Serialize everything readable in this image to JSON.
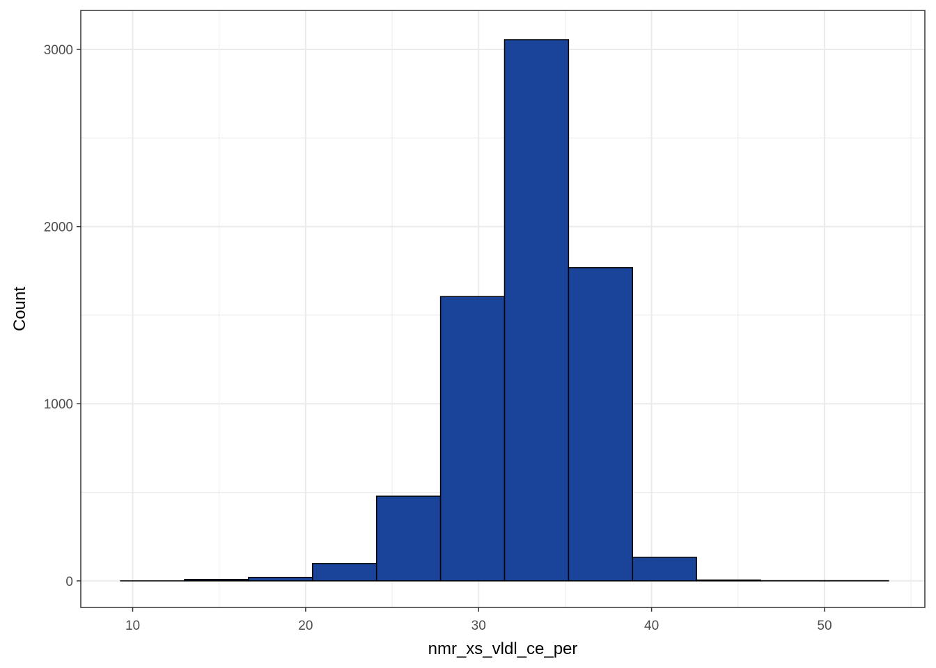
{
  "chart_data": {
    "type": "histogram",
    "xlabel": "nmr_xs_vldl_ce_per",
    "ylabel": "Count",
    "xlim": [
      7.0,
      55.8
    ],
    "ylim": [
      -150,
      3220
    ],
    "x_ticks": [
      10,
      20,
      30,
      40,
      50
    ],
    "y_ticks": [
      0,
      1000,
      2000,
      3000
    ],
    "grid": true,
    "bins": [
      {
        "start": 9.3,
        "end": 13.0,
        "count": 0
      },
      {
        "start": 13.0,
        "end": 16.7,
        "count": 8
      },
      {
        "start": 16.7,
        "end": 20.4,
        "count": 20
      },
      {
        "start": 20.4,
        "end": 24.1,
        "count": 98
      },
      {
        "start": 24.1,
        "end": 27.8,
        "count": 478
      },
      {
        "start": 27.8,
        "end": 31.5,
        "count": 1605
      },
      {
        "start": 31.5,
        "end": 35.2,
        "count": 3055
      },
      {
        "start": 35.2,
        "end": 38.9,
        "count": 1768
      },
      {
        "start": 38.9,
        "end": 42.6,
        "count": 133
      },
      {
        "start": 42.6,
        "end": 46.3,
        "count": 5
      },
      {
        "start": 46.3,
        "end": 50.0,
        "count": 1
      },
      {
        "start": 50.0,
        "end": 53.7,
        "count": 1
      }
    ],
    "colors": {
      "bar_fill": "#19449a",
      "bar_stroke": "#000000",
      "grid": "#ebebeb",
      "panel_border": "#333333"
    }
  }
}
